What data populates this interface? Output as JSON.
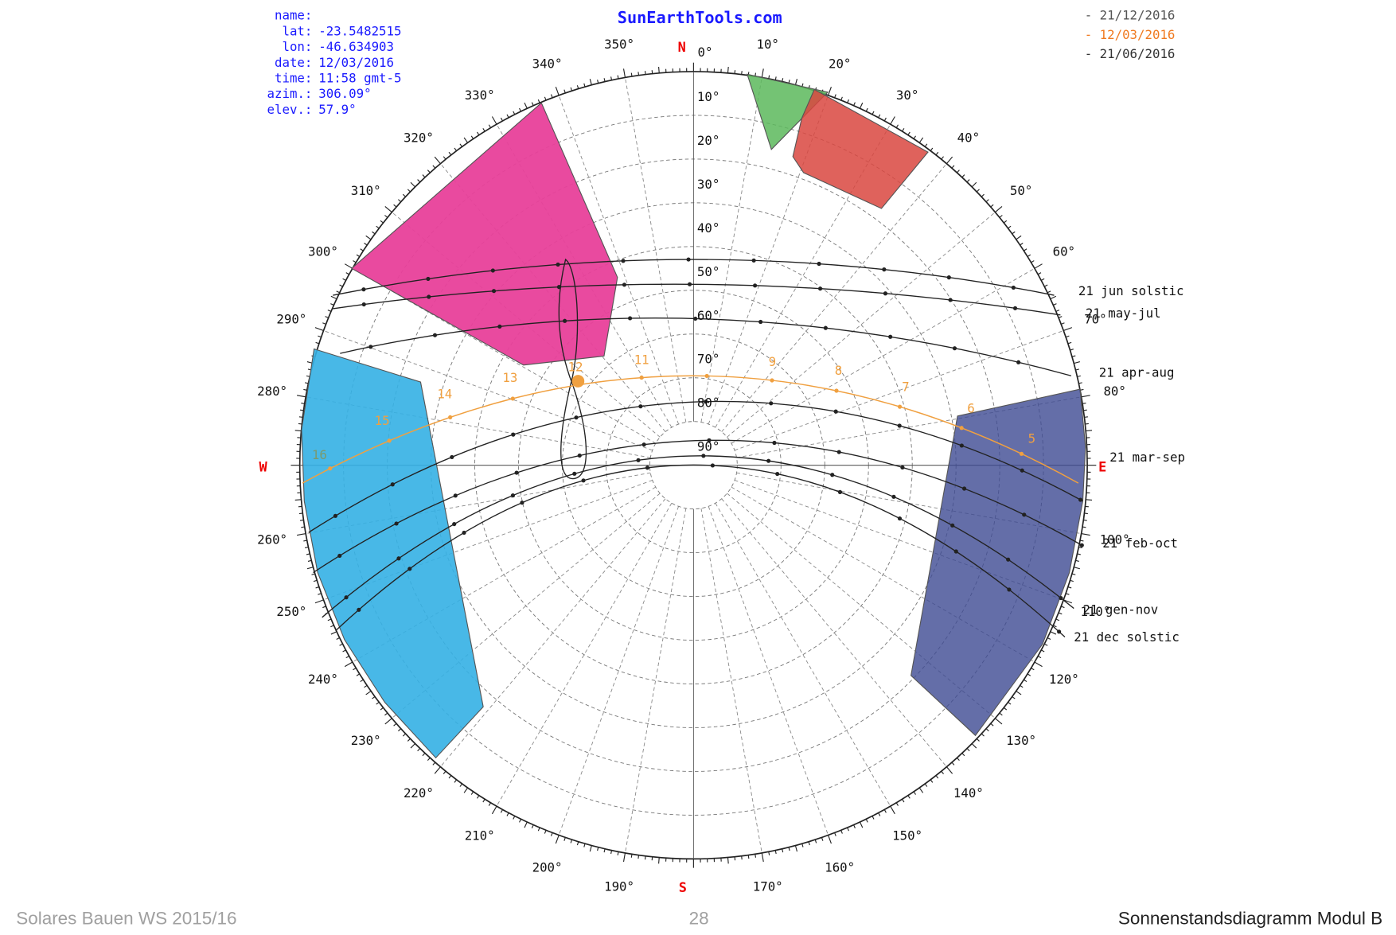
{
  "header": {
    "title": "SunEarthTools.com"
  },
  "info": [
    {
      "key": "name:",
      "value": ""
    },
    {
      "key": "lat:",
      "value": "-23.5482515"
    },
    {
      "key": "lon:",
      "value": "-46.634903"
    },
    {
      "key": "date:",
      "value": "12/03/2016"
    },
    {
      "key": "time:",
      "value": "11:58 gmt-5"
    },
    {
      "key": "azim.:",
      "value": "306.09°"
    },
    {
      "key": "elev.:",
      "value": "57.9°"
    }
  ],
  "legend": [
    "- 21/12/2016",
    "- 12/03/2016",
    "- 21/06/2016"
  ],
  "cardinals": {
    "n": "N",
    "e": "E",
    "s": "S",
    "w": "W"
  },
  "azimuth_labels": [
    "0°",
    "10°",
    "20°",
    "30°",
    "40°",
    "50°",
    "60°",
    "70°",
    "80°",
    "100°",
    "110°",
    "120°",
    "130°",
    "140°",
    "150°",
    "160°",
    "170°",
    "190°",
    "200°",
    "210°",
    "220°",
    "230°",
    "240°",
    "250°",
    "260°",
    "280°",
    "290°",
    "300°",
    "310°",
    "320°",
    "330°",
    "340°",
    "350°"
  ],
  "elevation_labels": [
    "10°",
    "20°",
    "30°",
    "40°",
    "50°",
    "60°",
    "70°",
    "80°",
    "90°"
  ],
  "curve_labels": [
    "21 jun  solstic",
    "21 may-jul",
    "21 apr-aug",
    "21 mar-sep",
    "21 feb-oct",
    "21 gen-nov",
    "21 dec  solstic"
  ],
  "hour_labels": [
    "16",
    "15",
    "14",
    "13",
    "12",
    "11",
    "9",
    "8",
    "7",
    "6",
    "5"
  ],
  "footer": {
    "left": "Solares Bauen WS 2015/16",
    "page": "28",
    "right": "Sonnenstandsdiagramm Modul B"
  }
}
